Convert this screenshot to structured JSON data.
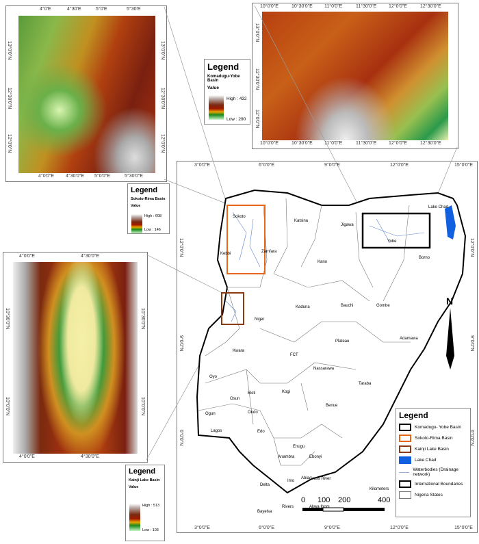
{
  "insets": {
    "sokoto": {
      "top_ticks": [
        "4°0'E",
        "4°30'E",
        "5°0'E",
        "5°30'E"
      ],
      "bottom_ticks": [
        "4°0'0\"E",
        "4°30'0\"E",
        "5°0'0\"E",
        "5°30'0\"E"
      ],
      "lat_ticks": [
        "13°0'0\"N",
        "12°30'0\"N",
        "12°0'0\"N"
      ]
    },
    "komadugu": {
      "lon_ticks": [
        "10°0'0\"E",
        "10°30'0\"E",
        "11°0'0\"E",
        "11°30'0\"E",
        "12°0'0\"E",
        "12°30'0\"E"
      ],
      "lat_ticks": [
        "13°0'0\"N",
        "12°30'0\"N",
        "12°0'0\"N"
      ]
    },
    "kainji": {
      "lon_ticks": [
        "4°0'0\"E",
        "4°30'0\"E"
      ],
      "lat_ticks": [
        "10°30'0\"N",
        "10°0'0\"N"
      ]
    }
  },
  "legends": {
    "komadugu": {
      "title": "Legend",
      "basin": "Komadugu-Yobe Basin",
      "value": "Value",
      "high": "High : 432",
      "low": "Low : 290"
    },
    "sokoto": {
      "title": "Legend",
      "basin": "Sokoto-Rima Basin",
      "value": "Value",
      "high": "High : 608",
      "low": "Low : 146"
    },
    "kainji": {
      "title": "Legend",
      "basin": "Kainji Lake Basin",
      "value": "Value",
      "high": "High : 513",
      "low": "Low : 103"
    },
    "main": {
      "title": "Legend",
      "items": [
        {
          "label": "Komadugu- Yobe Basin",
          "color": "#000000",
          "type": "box"
        },
        {
          "label": "Sokoto-Rima Basin",
          "color": "#e8661a",
          "type": "box"
        },
        {
          "label": "Kainji Lake Basin",
          "color": "#8b3a14",
          "type": "box"
        },
        {
          "label": "Lake Chad",
          "color": "#1060e0",
          "type": "fill"
        },
        {
          "label": "Waterbodies (Drainage network)",
          "color": "#8fb0e0",
          "type": "line"
        },
        {
          "label": "International Boundaries",
          "color": "#000000",
          "type": "box"
        },
        {
          "label": "Nigeria States",
          "color": "#777777",
          "type": "thin"
        }
      ]
    }
  },
  "main_map": {
    "lon_ticks": [
      "3°0'0\"E",
      "6°0'0\"E",
      "9°0'0\"E",
      "12°0'0\"E",
      "15°0'0\"E"
    ],
    "lat_ticks": [
      "12°0'0\"N",
      "9°0'0\"N",
      "6°0'0\"N"
    ],
    "north": "N",
    "scale": {
      "unit": "Kilometers",
      "labels": [
        "0",
        "100",
        "200",
        "400"
      ]
    },
    "states": [
      "Sokoto",
      "Zamfara",
      "Kebbi",
      "Katsina",
      "Jigawa",
      "Yobe",
      "Borno",
      "Kano",
      "Kaduna",
      "Bauchi",
      "Gombe",
      "Niger",
      "Plateau",
      "Adamawa",
      "Kwara",
      "FCT",
      "Nassarawa",
      "Oyo",
      "Osun",
      "Ekiti",
      "Kogi",
      "Taraba",
      "Ondo",
      "Benue",
      "Ogun",
      "Lagos",
      "Edo",
      "Enugu",
      "Anambra",
      "Ebonyi",
      "Delta",
      "Imo",
      "Abia",
      "Cross River",
      "Rivers",
      "Bayelsa",
      "Akwa Ibom"
    ],
    "lake": "Lake Chad"
  }
}
